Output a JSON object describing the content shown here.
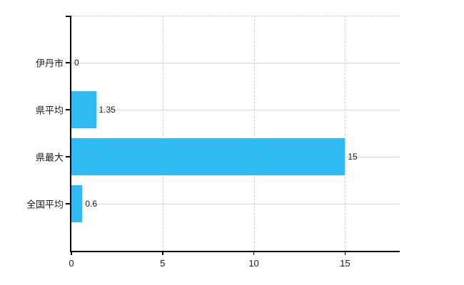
{
  "chart_data": {
    "type": "bar",
    "orientation": "horizontal",
    "title": "",
    "categories": [
      "伊丹市",
      "県平均",
      "県最大",
      "全国平均"
    ],
    "values": [
      0,
      1.35,
      15,
      0.6
    ],
    "value_labels": [
      "0",
      "1.35",
      "15",
      "0.6"
    ],
    "x_ticks": [
      0,
      5,
      10,
      15
    ],
    "x_tick_labels": [
      "0",
      "5",
      "10",
      "15"
    ],
    "xlim": [
      0,
      18
    ],
    "grid": "on",
    "legend": "none",
    "bar_color": "#30BAF2",
    "grid_color": "#d4d8d4",
    "axis_color": "#000000",
    "text_color": "#1b1b1b"
  }
}
